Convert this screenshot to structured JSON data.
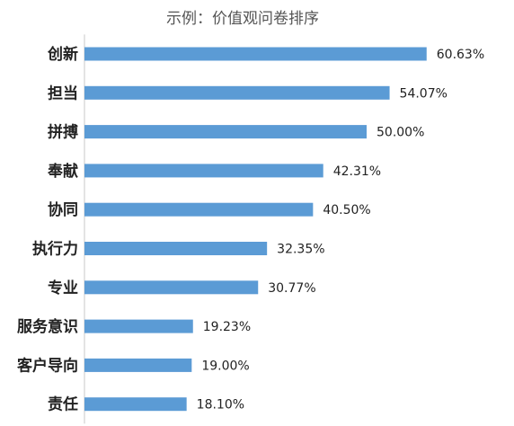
{
  "chart_data": {
    "type": "bar",
    "orientation": "horizontal",
    "title": "示例：价值观问卷排序",
    "categories": [
      "创新",
      "担当",
      "拼搏",
      "奉献",
      "协同",
      "执行力",
      "专业",
      "服务意识",
      "客户导向",
      "责任"
    ],
    "values": [
      60.63,
      54.07,
      50.0,
      42.31,
      40.5,
      32.35,
      30.77,
      19.23,
      19.0,
      18.1
    ],
    "value_labels": [
      "60.63%",
      "54.07%",
      "50.00%",
      "42.31%",
      "40.50%",
      "32.35%",
      "30.77%",
      "19.23%",
      "19.00%",
      "18.10%"
    ],
    "xlim": [
      0,
      100
    ],
    "grid": false,
    "legend": "none",
    "colors": {
      "bar": "#5b9bd5"
    }
  }
}
